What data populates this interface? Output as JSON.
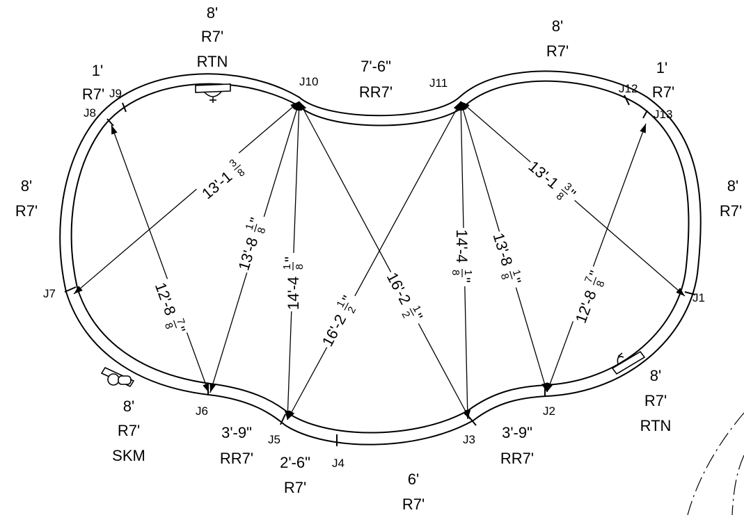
{
  "junctions": {
    "j1": "J1",
    "j2": "J2",
    "j3": "J3",
    "j4": "J4",
    "j5": "J5",
    "j6": "J6",
    "j7": "J7",
    "j8": "J8",
    "j9": "J9",
    "j10": "J10",
    "j11": "J11",
    "j12": "J12",
    "j13": "J13"
  },
  "segments": {
    "top_left_rtn": {
      "len": "8'",
      "type": "R7'",
      "note": "RTN"
    },
    "top_right": {
      "len": "8'",
      "type": "R7'"
    },
    "top_center": {
      "len": "7'-6\"",
      "type": "RR7'"
    },
    "j8_j9": {
      "len": "1'",
      "type": "R7'"
    },
    "j12_j13": {
      "len": "1'",
      "type": "R7'"
    },
    "left": {
      "len": "8'",
      "type": "R7'"
    },
    "right": {
      "len": "8'",
      "type": "R7'"
    },
    "skimmer": {
      "len": "8'",
      "type": "R7'",
      "note": "SKM"
    },
    "right_rtn": {
      "len": "8'",
      "type": "R7'",
      "note": "RTN"
    },
    "j6_j5": {
      "len": "3'-9\"",
      "type": "RR7'"
    },
    "j3_j2": {
      "len": "3'-9\"",
      "type": "RR7'"
    },
    "j5_j4": {
      "len": "2'-6\"",
      "type": "R7'"
    },
    "j4_j3": {
      "len": "6'",
      "type": "R7'"
    }
  },
  "dimensions": {
    "j10_j7": {
      "main": "13'-1",
      "num": "3",
      "den": "8"
    },
    "j8_j6": {
      "main": "12'-8",
      "num": "7",
      "den": "8",
      "inch": "\""
    },
    "j10_j6": {
      "main": "13'-8",
      "num": "1",
      "den": "8",
      "inch": "\""
    },
    "j10_j5": {
      "main": "14'-4",
      "num": "1",
      "den": "8",
      "inch": "\""
    },
    "j11_j5": {
      "main": "16'-2",
      "num": "1",
      "den": "2",
      "inch": "\""
    },
    "j10_j3": {
      "main": "16'-2",
      "num": "1",
      "den": "2",
      "inch": "\""
    },
    "j11_j3": {
      "main": "14'-4",
      "num": "1",
      "den": "8",
      "inch": "\""
    },
    "j11_j2": {
      "main": "13'-8",
      "num": "1",
      "den": "8",
      "inch": "\""
    },
    "j11_j1": {
      "main": "13'-1",
      "num": "3",
      "den": "8",
      "inch": "\""
    },
    "j13_j2": {
      "main": "12'-8",
      "num": "7",
      "den": "8",
      "inch": "\""
    }
  },
  "icons": [
    "return-fitting-icon",
    "skimmer-icon"
  ],
  "colors": {
    "line": "#000000",
    "background": "#ffffff"
  }
}
